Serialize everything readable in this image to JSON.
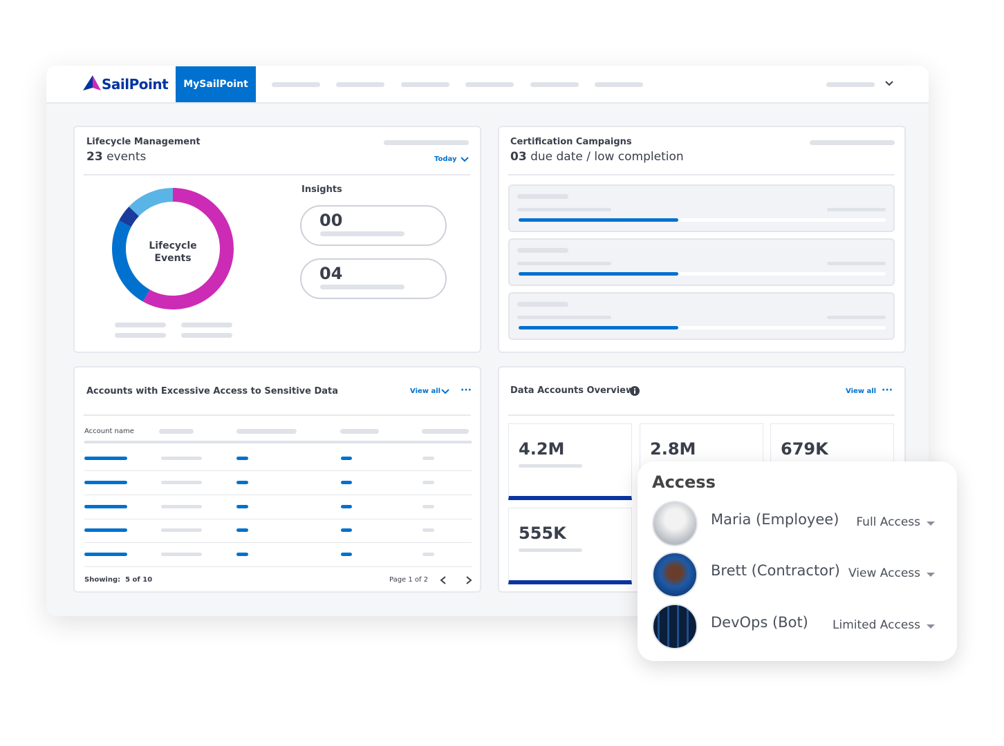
{
  "header": {
    "logo": "SailPoint",
    "tab": "MySailPoint"
  },
  "lifecycle": {
    "title": "Lifecycle Management",
    "count": "23",
    "count_unit": "events",
    "filter": "Today",
    "donut_label": [
      "Lifecycle",
      "Events"
    ],
    "insights_title": "Insights",
    "insights": [
      "00",
      "04"
    ]
  },
  "certification": {
    "title": "Certification Campaigns",
    "count": "03",
    "text": "due date / low completion"
  },
  "accounts": {
    "title": "Accounts with Excessive Access to Sensitive Data",
    "view_all": "View all",
    "column": "Account name",
    "showing_label": "Showing:",
    "showing": "5 of 10",
    "page": "Page 1 of 2"
  },
  "data_accounts": {
    "title": "Data Accounts Overview",
    "view_all": "View all",
    "stats": [
      "4.2M",
      "2.8M",
      "679K",
      "555K"
    ]
  },
  "access": {
    "title": "Access",
    "people": [
      {
        "name": "Maria (Employee)",
        "access": "Full Access"
      },
      {
        "name": "Brett (Contractor)",
        "access": "View Access"
      },
      {
        "name": "DevOps (Bot)",
        "access": "Limited Access"
      }
    ]
  }
}
